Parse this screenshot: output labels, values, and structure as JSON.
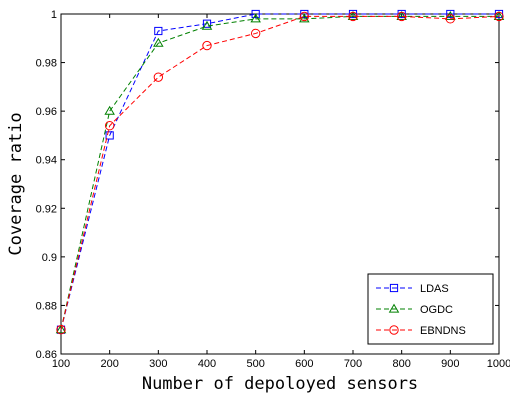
{
  "chart_data": {
    "type": "line",
    "title": "",
    "xlabel": "Number of depoloyed sensors",
    "ylabel": "Coverage ratio",
    "x": [
      100,
      200,
      300,
      400,
      500,
      600,
      700,
      800,
      900,
      1000
    ],
    "xlim": [
      100,
      1000
    ],
    "ylim": [
      0.86,
      1
    ],
    "xticks": [
      "100",
      "200",
      "300",
      "400",
      "500",
      "600",
      "700",
      "800",
      "900",
      "1000"
    ],
    "yticks": [
      "0.86",
      "0.88",
      "0.9",
      "0.92",
      "0.94",
      "0.96",
      "0.98",
      "1"
    ],
    "grid": false,
    "legend_position": "bottom-right",
    "series": [
      {
        "name": "LDAS",
        "color": "#0000ff",
        "marker": "square",
        "values": [
          0.87,
          0.95,
          0.993,
          0.996,
          1.0,
          1.0,
          1.0,
          1.0,
          1.0,
          1.0
        ]
      },
      {
        "name": "OGDC",
        "color": "#008000",
        "marker": "triangle",
        "values": [
          0.87,
          0.96,
          0.988,
          0.995,
          0.998,
          0.998,
          0.999,
          0.999,
          0.999,
          0.999
        ]
      },
      {
        "name": "EBNDNS",
        "color": "#ff0000",
        "marker": "circle",
        "values": [
          0.87,
          0.954,
          0.974,
          0.987,
          0.992,
          0.999,
          0.999,
          0.999,
          0.998,
          0.999
        ]
      }
    ]
  }
}
